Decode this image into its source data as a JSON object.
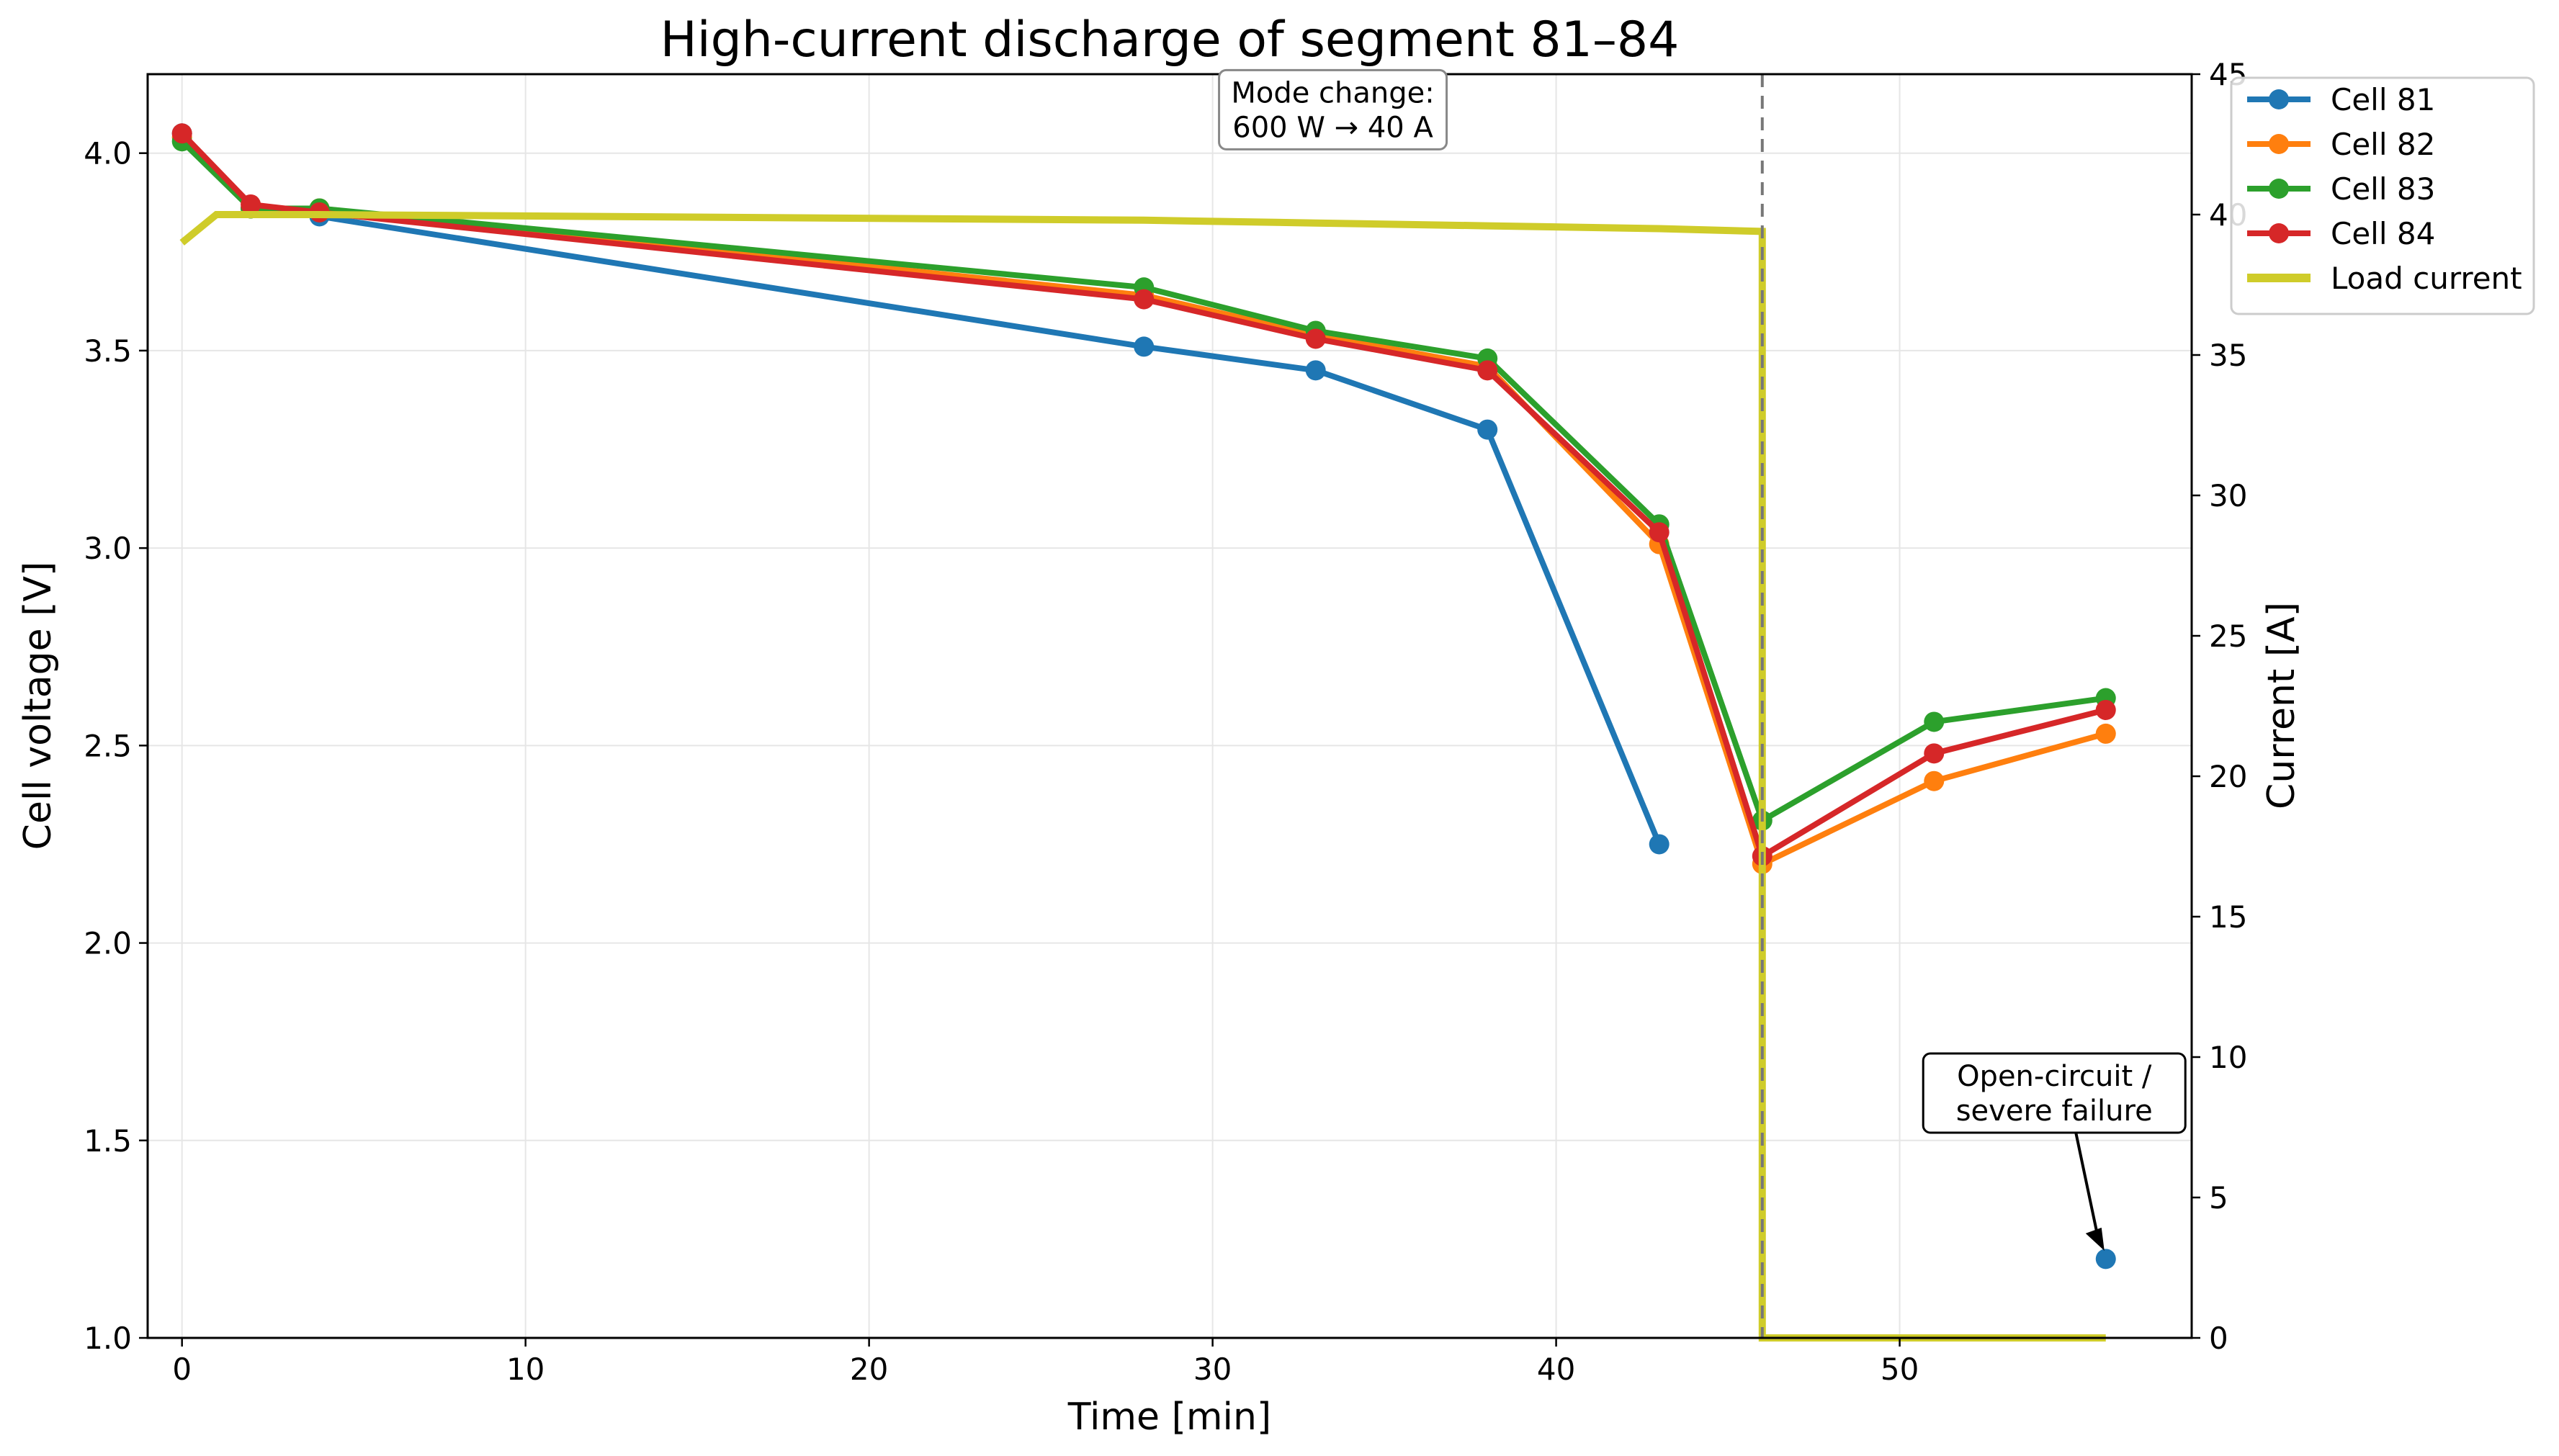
{
  "chart_data": {
    "type": "line",
    "title": "High-current discharge of segment 81–84",
    "xlabel": "Time [min]",
    "ylabel": "Cell voltage [V]",
    "y2label": "Current [A]",
    "xlim": [
      -1,
      58.5
    ],
    "ylim": [
      1.0,
      4.2
    ],
    "y2lim": [
      0,
      45
    ],
    "xticks": [
      0,
      10,
      20,
      30,
      40,
      50
    ],
    "yticks": [
      1.0,
      1.5,
      2.0,
      2.5,
      3.0,
      3.5,
      4.0
    ],
    "y2ticks": [
      0,
      5,
      10,
      15,
      20,
      25,
      30,
      35,
      40,
      45
    ],
    "grid": true,
    "legend_position": "top-right",
    "series": [
      {
        "name": "Cell 81",
        "color": "#1f77b4",
        "x": [
          0,
          2,
          4,
          28,
          33,
          38,
          43
        ],
        "y": [
          4.05,
          3.86,
          3.84,
          3.51,
          3.45,
          3.3,
          2.25
        ]
      },
      {
        "name": "Cell 82",
        "color": "#ff7f0e",
        "x": [
          0,
          2,
          4,
          28,
          33,
          38,
          43,
          46,
          51,
          56
        ],
        "y": [
          4.04,
          3.86,
          3.86,
          3.64,
          3.54,
          3.46,
          3.01,
          2.2,
          2.41,
          2.53
        ]
      },
      {
        "name": "Cell 83",
        "color": "#2ca02c",
        "x": [
          0,
          2,
          4,
          28,
          33,
          38,
          43,
          46,
          51,
          56
        ],
        "y": [
          4.03,
          3.86,
          3.86,
          3.66,
          3.55,
          3.48,
          3.06,
          2.31,
          2.56,
          2.62
        ]
      },
      {
        "name": "Cell 84",
        "color": "#d62728",
        "x": [
          0,
          2,
          4,
          28,
          33,
          38,
          43,
          46,
          51,
          56
        ],
        "y": [
          4.05,
          3.87,
          3.85,
          3.63,
          3.53,
          3.45,
          3.04,
          2.22,
          2.48,
          2.59
        ]
      }
    ],
    "extra_points": [
      {
        "series": "Cell 81",
        "x": 56,
        "y": 1.2
      }
    ],
    "current_series": {
      "name": "Load current",
      "color": "#cfcc2a",
      "x": [
        0,
        1,
        2,
        4,
        28,
        33,
        38,
        43,
        46,
        46,
        56
      ],
      "y": [
        39,
        40,
        40,
        40,
        39.8,
        39.7,
        39.6,
        39.5,
        39.4,
        0,
        0
      ]
    },
    "vline_x": 46,
    "annotations": [
      {
        "lines": [
          "Mode change:",
          "600 W → 40 A"
        ],
        "x": 33.5,
        "y": 4.11
      },
      {
        "lines": [
          "Open-circuit /",
          "severe failure"
        ],
        "x": 54.5,
        "y": 1.62,
        "target_x": 56,
        "target_y": 1.21
      }
    ]
  }
}
